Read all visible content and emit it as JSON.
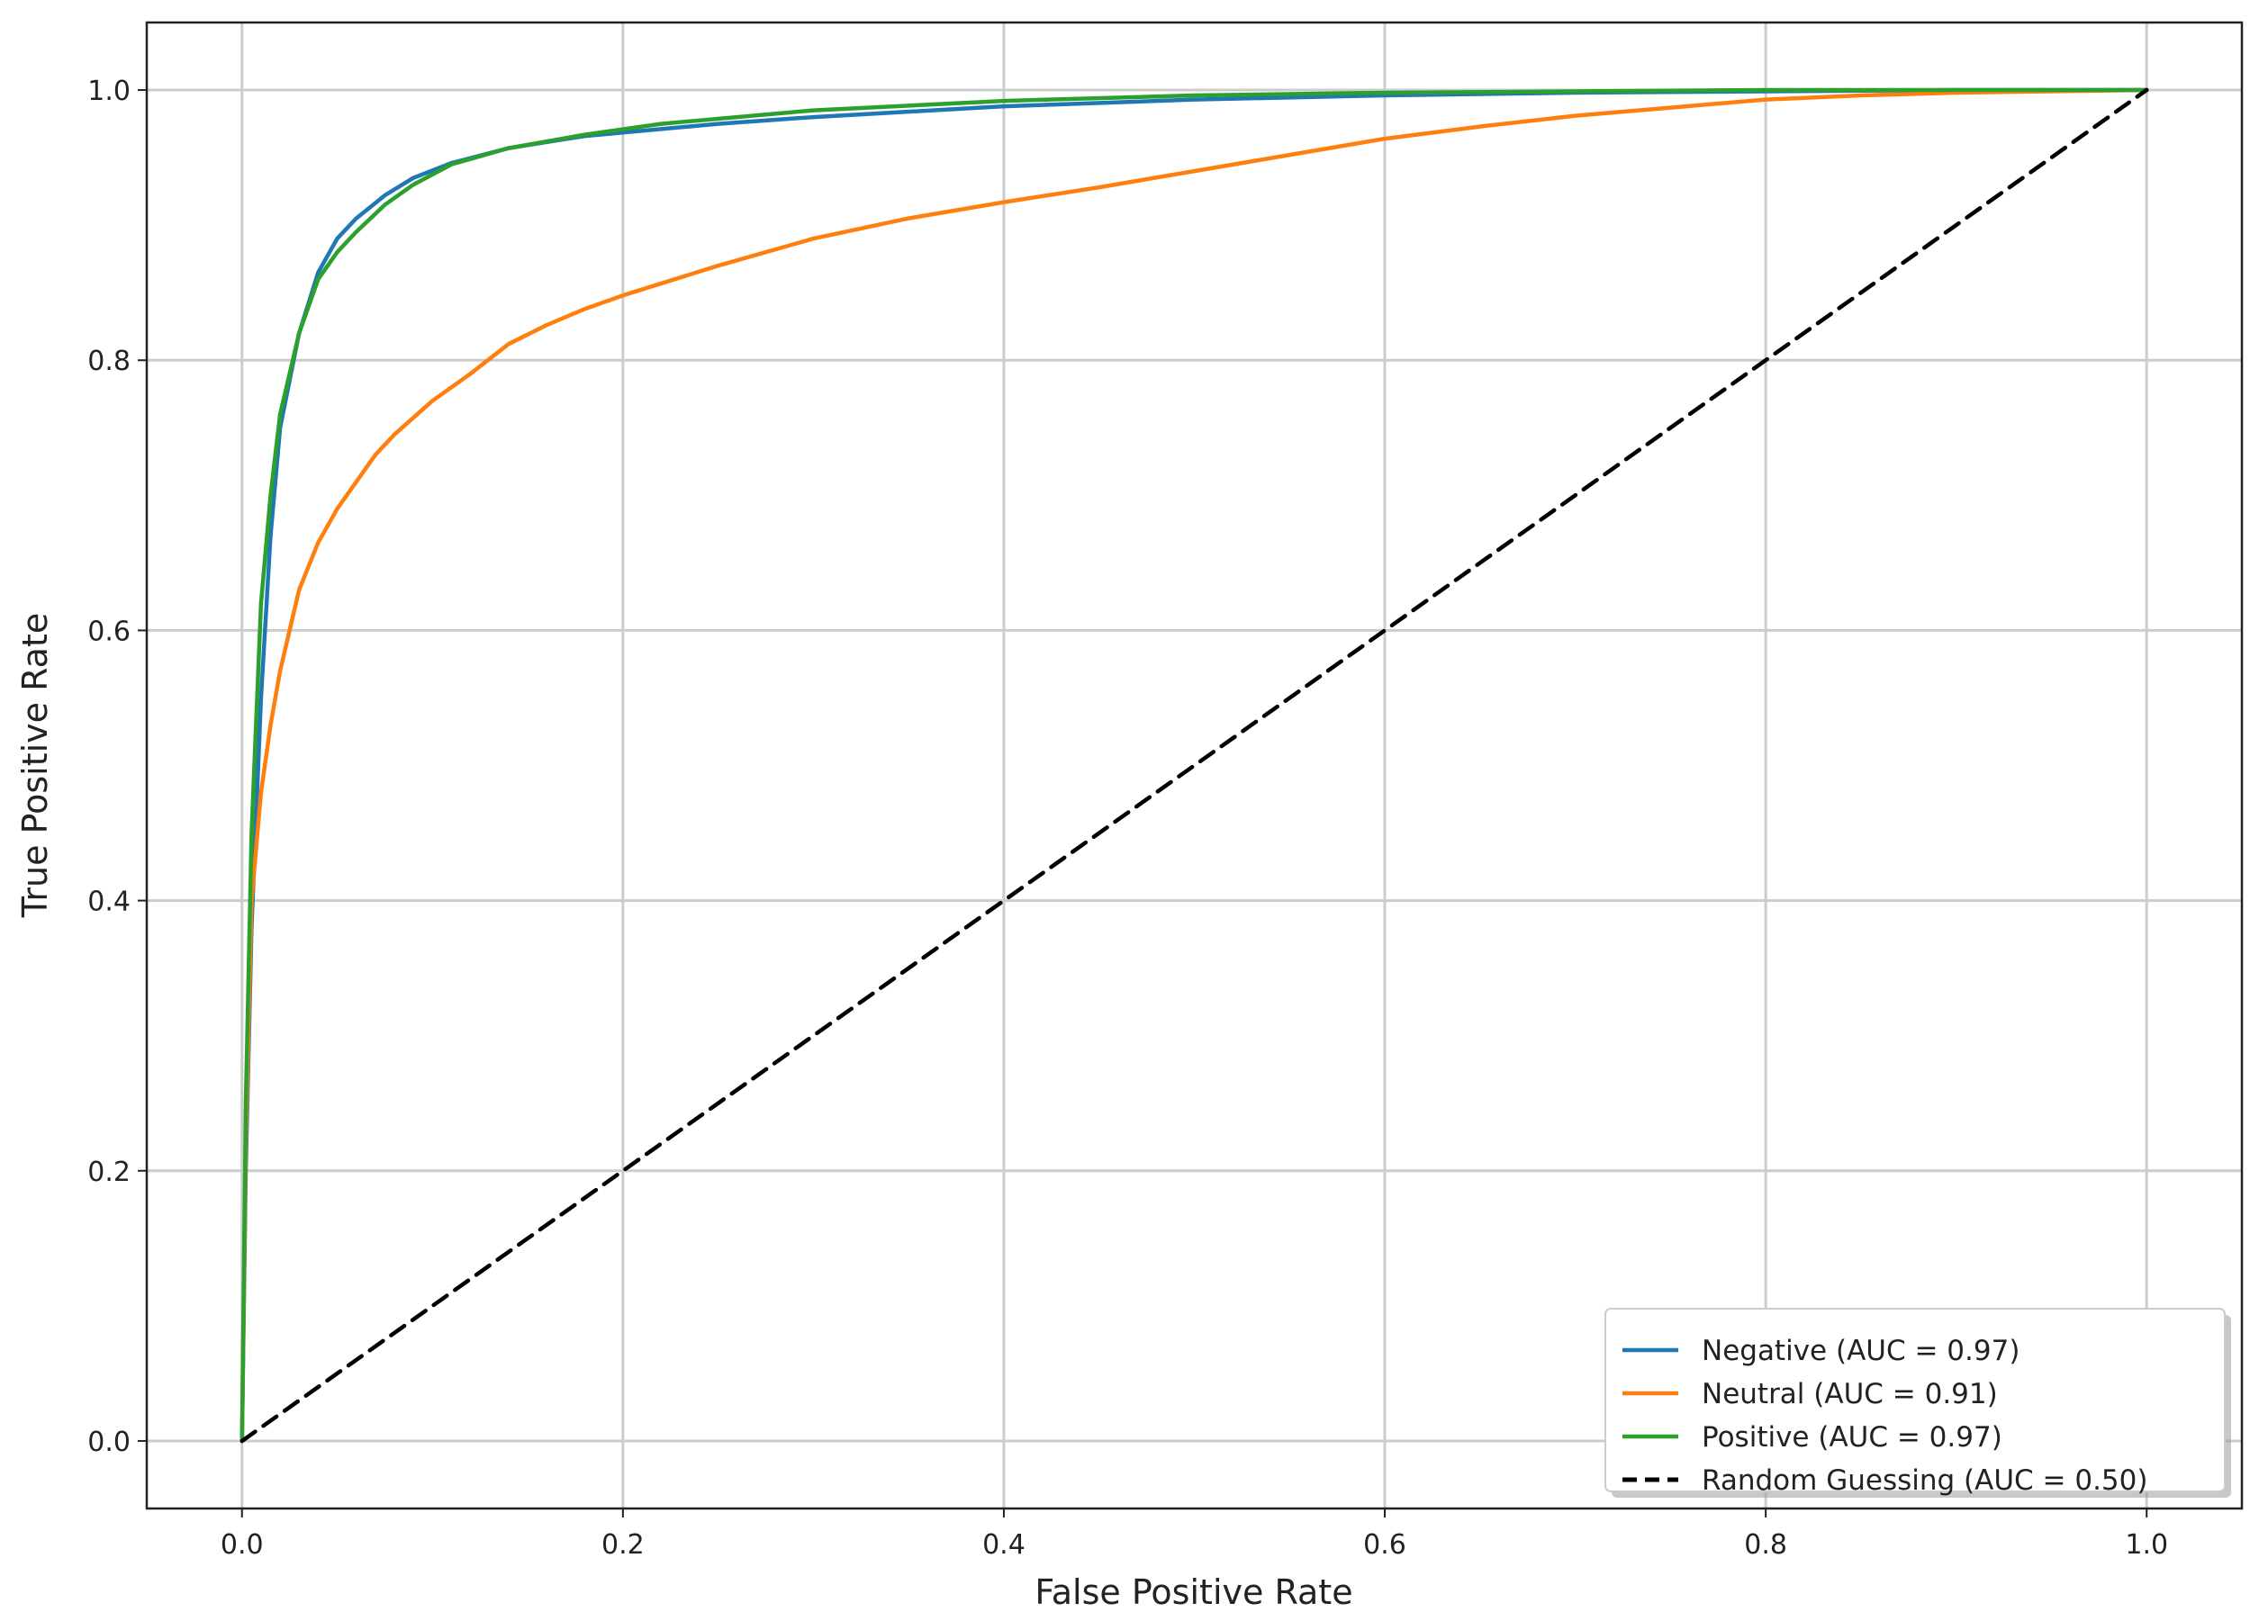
{
  "chart_data": {
    "type": "line",
    "title": "",
    "xlabel": "False Positive Rate",
    "ylabel": "True Positive Rate",
    "xlim": [
      -0.05,
      1.05
    ],
    "ylim": [
      -0.05,
      1.05
    ],
    "xticks": [
      0.0,
      0.2,
      0.4,
      0.6,
      0.8,
      1.0
    ],
    "xtick_labels": [
      "0.0",
      "0.2",
      "0.4",
      "0.6",
      "0.8",
      "1.0"
    ],
    "yticks": [
      0.0,
      0.2,
      0.4,
      0.6,
      0.8,
      1.0
    ],
    "ytick_labels": [
      "0.0",
      "0.2",
      "0.4",
      "0.6",
      "0.8",
      "1.0"
    ],
    "grid": true,
    "legend_position": "lower-right",
    "series": [
      {
        "name": "Negative (AUC = 0.97)",
        "color": "#1f77b4",
        "style": "solid",
        "x": [
          0.0,
          0.002,
          0.005,
          0.01,
          0.015,
          0.02,
          0.03,
          0.04,
          0.05,
          0.06,
          0.075,
          0.09,
          0.11,
          0.14,
          0.18,
          0.25,
          0.3,
          0.4,
          0.5,
          0.6,
          0.7,
          0.8,
          0.9,
          1.0
        ],
        "y": [
          0.0,
          0.2,
          0.38,
          0.55,
          0.67,
          0.75,
          0.82,
          0.865,
          0.89,
          0.905,
          0.922,
          0.935,
          0.946,
          0.957,
          0.966,
          0.975,
          0.98,
          0.988,
          0.993,
          0.996,
          0.998,
          0.999,
          1.0,
          1.0
        ]
      },
      {
        "name": "Neutral (AUC = 0.91)",
        "color": "#ff7f0e",
        "style": "solid",
        "x": [
          0.0,
          0.002,
          0.005,
          0.01,
          0.015,
          0.02,
          0.03,
          0.04,
          0.05,
          0.06,
          0.07,
          0.08,
          0.1,
          0.12,
          0.14,
          0.16,
          0.18,
          0.2,
          0.25,
          0.3,
          0.35,
          0.4,
          0.45,
          0.5,
          0.55,
          0.6,
          0.65,
          0.7,
          0.75,
          0.8,
          0.85,
          0.9,
          0.95,
          1.0
        ],
        "y": [
          0.0,
          0.22,
          0.4,
          0.48,
          0.53,
          0.57,
          0.63,
          0.665,
          0.69,
          0.71,
          0.73,
          0.745,
          0.77,
          0.79,
          0.812,
          0.826,
          0.838,
          0.848,
          0.87,
          0.89,
          0.905,
          0.917,
          0.928,
          0.94,
          0.952,
          0.964,
          0.973,
          0.981,
          0.987,
          0.993,
          0.996,
          0.998,
          0.999,
          1.0
        ]
      },
      {
        "name": "Positive (AUC = 0.97)",
        "color": "#2ca02c",
        "style": "solid",
        "x": [
          0.0,
          0.002,
          0.005,
          0.01,
          0.015,
          0.02,
          0.03,
          0.04,
          0.05,
          0.06,
          0.075,
          0.09,
          0.11,
          0.14,
          0.18,
          0.22,
          0.3,
          0.4,
          0.5,
          0.6,
          0.7,
          0.8,
          0.9,
          1.0
        ],
        "y": [
          0.0,
          0.25,
          0.45,
          0.62,
          0.7,
          0.76,
          0.82,
          0.86,
          0.88,
          0.895,
          0.915,
          0.93,
          0.945,
          0.957,
          0.967,
          0.975,
          0.985,
          0.992,
          0.996,
          0.998,
          0.999,
          1.0,
          1.0,
          1.0
        ]
      },
      {
        "name": "Random Guessing (AUC = 0.50)",
        "color": "#000000",
        "style": "dashed",
        "x": [
          0.0,
          1.0
        ],
        "y": [
          0.0,
          1.0
        ]
      }
    ]
  }
}
